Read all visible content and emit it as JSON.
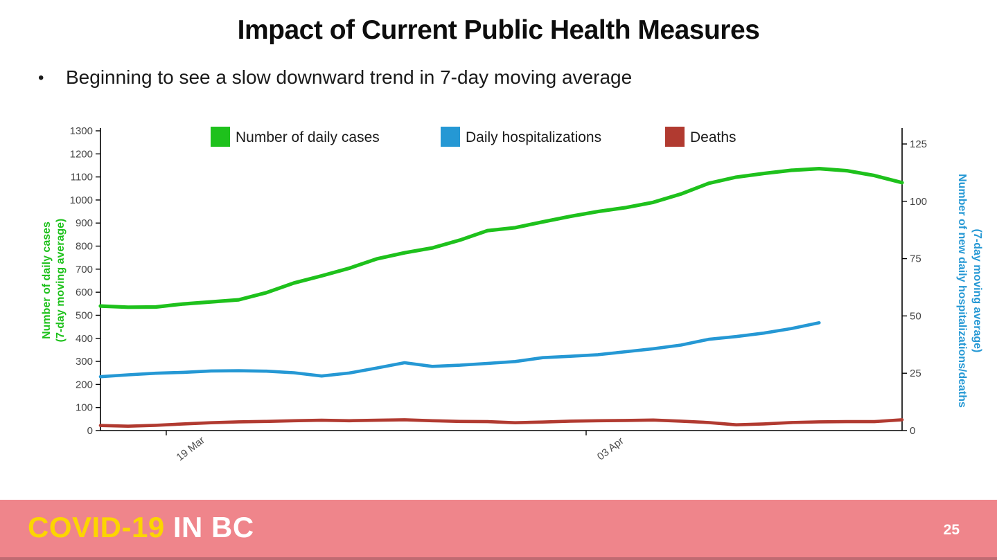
{
  "slide": {
    "title": "Impact of Current Public Health Measures",
    "bullet_marker": "•",
    "bullet": "Beginning to see a slow downward trend in 7-day moving average",
    "footer": {
      "brand_primary": "COVID-19",
      "brand_secondary": "IN BC",
      "page_number": "25",
      "band_color": "#ef858b",
      "brand_primary_color": "#fcd500",
      "brand_secondary_color": "#ffffff"
    }
  },
  "chart_data": {
    "type": "line",
    "title": "",
    "grid": false,
    "legend_position": "top",
    "legend": [
      {
        "label": "Number of daily cases",
        "color": "#1ec11c"
      },
      {
        "label": "Daily hospitalizations",
        "color": "#2598d4"
      },
      {
        "label": "Deaths",
        "color": "#b13a30"
      }
    ],
    "left_axis": {
      "title_line1": "Number of daily cases",
      "title_line2": "(7-day moving average)",
      "min": 0,
      "max": 1300,
      "tick_step": 100,
      "color": "#1ec11c"
    },
    "right_axis": {
      "title_line1": "Number of new daily hospitalizations/deaths",
      "title_line2": "(7-day moving average)",
      "min": 0,
      "max": 125,
      "tick_step": 25,
      "color": "#2598d4"
    },
    "x_axis": {
      "max_index": 29,
      "tick_labels": [
        {
          "label": "19 Mar",
          "index": 2.38
        },
        {
          "label": "03 Apr",
          "index": 17.57
        }
      ]
    },
    "series": [
      {
        "name": "Number of daily cases",
        "axis": "left",
        "color": "#1ec11c",
        "values": [
          540,
          535,
          536,
          549,
          558,
          567,
          598,
          640,
          671,
          704,
          745,
          771,
          792,
          826,
          867,
          880,
          905,
          929,
          950,
          967,
          990,
          1026,
          1072,
          1099,
          1115,
          1129,
          1136,
          1127,
          1106,
          1075
        ]
      },
      {
        "name": "Daily hospitalizations",
        "axis": "right",
        "color": "#2598d4",
        "values": [
          23.5,
          24.3,
          25,
          25.4,
          26,
          26.1,
          25.9,
          25.2,
          23.8,
          25.1,
          27.3,
          29.6,
          28,
          28.5,
          29.3,
          30.1,
          31.8,
          32.4,
          33.1,
          34.4,
          35.7,
          37.3,
          39.8,
          41,
          42.5,
          44.5,
          47
        ]
      },
      {
        "name": "Deaths",
        "axis": "right",
        "color": "#b13a30",
        "values": [
          2.2,
          1.9,
          2.3,
          2.9,
          3.4,
          3.8,
          4,
          4.3,
          4.5,
          4.3,
          4.5,
          4.7,
          4.3,
          4,
          3.9,
          3.4,
          3.7,
          4.1,
          4.3,
          4.4,
          4.6,
          4.1,
          3.5,
          2.5,
          2.9,
          3.5,
          3.8,
          3.9,
          3.9,
          4.7
        ]
      }
    ]
  }
}
